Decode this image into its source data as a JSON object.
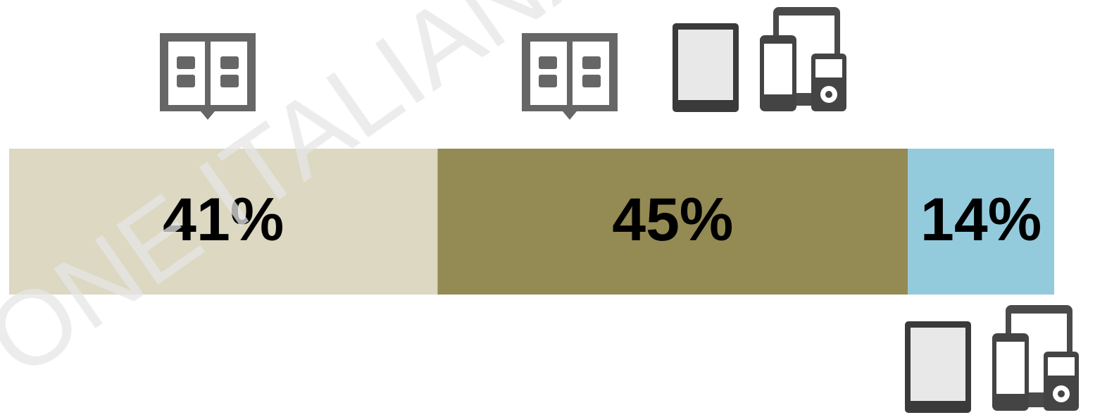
{
  "chart_data": {
    "type": "stacked-bar",
    "values": [
      41,
      45,
      14
    ],
    "value_labels": [
      "41%",
      "45%",
      "14%"
    ],
    "colors": [
      "#dcd8c1",
      "#948a53",
      "#93cbdd"
    ],
    "xlim": [
      0,
      100
    ],
    "watermark": "ONE ITALIANA ED"
  }
}
